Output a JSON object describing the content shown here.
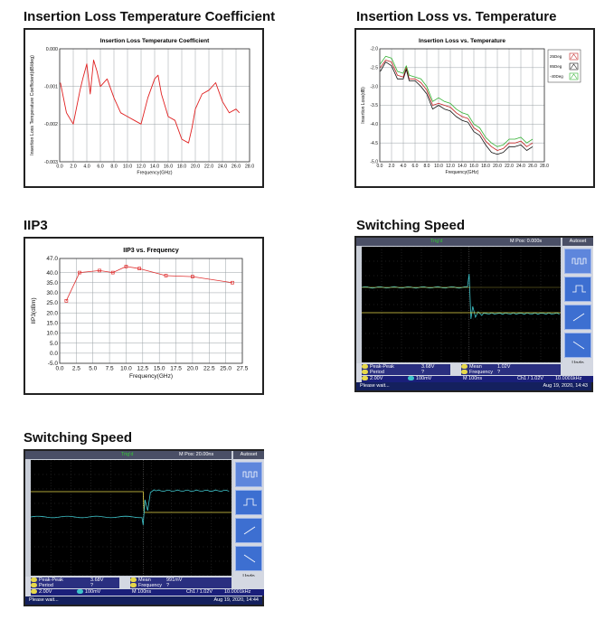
{
  "sections": {
    "il_coef": "Insertion Loss Temperature Coefficient",
    "il_temp": "Insertion Loss vs. Temperature",
    "iip3": "IIP3",
    "sw1": "Switching Speed",
    "sw2": "Switching Speed"
  },
  "chart_data": [
    {
      "type": "line",
      "title": "Insertion Loss Temperature Coefficient",
      "xlabel": "Frequency(GHz)",
      "ylabel": "Insertion Loss Temperature Coefficient(dB/deg)",
      "xlim": [
        0,
        28
      ],
      "ylim": [
        -0.003,
        0.0
      ],
      "x_ticks": [
        "0.0",
        "2.0",
        "4.0",
        "6.0",
        "8.0",
        "10.0",
        "12.0",
        "14.0",
        "16.0",
        "18.0",
        "20.0",
        "22.0",
        "24.0",
        "26.0",
        "28.0"
      ],
      "y_ticks": [
        "0.000",
        "-0.001",
        "-0.002",
        "-0.003"
      ],
      "grid": true,
      "color": "#e02020",
      "x": [
        0.1,
        1,
        2,
        3,
        3.4,
        4,
        4.5,
        5,
        5.5,
        6,
        7,
        8,
        9,
        10,
        11,
        12,
        13,
        14,
        14.5,
        15,
        16,
        17,
        18,
        19,
        19.5,
        20,
        21,
        22,
        23,
        24,
        25,
        26,
        26.5
      ],
      "y": [
        -0.0009,
        -0.0017,
        -0.002,
        -0.0011,
        -0.0008,
        -0.0004,
        -0.0012,
        -0.0003,
        -0.0006,
        -0.001,
        -0.0008,
        -0.0013,
        -0.0017,
        -0.0018,
        -0.0019,
        -0.002,
        -0.0013,
        -0.0008,
        -0.0007,
        -0.0012,
        -0.0018,
        -0.0019,
        -0.0024,
        -0.0025,
        -0.0021,
        -0.0016,
        -0.0012,
        -0.0011,
        -0.0009,
        -0.0014,
        -0.0017,
        -0.0016,
        -0.0017
      ]
    },
    {
      "type": "line",
      "title": "Insertion Loss vs. Temperature",
      "xlabel": "Frequency(GHz)",
      "ylabel": "Insertion Loss(dB)",
      "xlim": [
        0,
        28
      ],
      "ylim": [
        -5.0,
        -2.0
      ],
      "x_ticks": [
        "0.0",
        "2.0",
        "4.0",
        "6.0",
        "8.0",
        "10.0",
        "12.0",
        "14.0",
        "16.0",
        "18.0",
        "20.0",
        "22.0",
        "24.0",
        "26.0",
        "28.0"
      ],
      "y_ticks": [
        "-2.0",
        "-2.5",
        "-3.0",
        "-3.5",
        "-4.0",
        "-4.5",
        "-5.0"
      ],
      "grid": true,
      "legend": "top-right",
      "x": [
        0.1,
        1,
        2,
        3,
        4,
        4.5,
        5,
        6,
        7,
        8,
        9,
        10,
        11,
        12,
        13,
        14,
        15,
        16,
        17,
        18,
        19,
        20,
        21,
        22,
        23,
        24,
        25,
        26
      ],
      "series": [
        {
          "name": "25Deg",
          "color": "#c02020",
          "values": [
            -2.5,
            -2.3,
            -2.35,
            -2.7,
            -2.75,
            -2.5,
            -2.8,
            -2.8,
            -2.9,
            -3.1,
            -3.5,
            -3.45,
            -3.5,
            -3.55,
            -3.7,
            -3.8,
            -3.85,
            -4.1,
            -4.2,
            -4.45,
            -4.6,
            -4.7,
            -4.65,
            -4.5,
            -4.5,
            -4.45,
            -4.6,
            -4.5
          ]
        },
        {
          "name": "85Deg",
          "color": "#111111",
          "values": [
            -2.6,
            -2.35,
            -2.45,
            -2.8,
            -2.8,
            -2.55,
            -2.85,
            -2.85,
            -3.0,
            -3.2,
            -3.6,
            -3.5,
            -3.6,
            -3.65,
            -3.8,
            -3.9,
            -3.95,
            -4.2,
            -4.3,
            -4.55,
            -4.75,
            -4.8,
            -4.75,
            -4.6,
            -4.6,
            -4.55,
            -4.7,
            -4.6
          ]
        },
        {
          "name": "-40Deg",
          "color": "#30b030",
          "values": [
            -2.4,
            -2.2,
            -2.25,
            -2.6,
            -2.65,
            -2.45,
            -2.7,
            -2.75,
            -2.8,
            -3.0,
            -3.4,
            -3.3,
            -3.4,
            -3.45,
            -3.6,
            -3.7,
            -3.75,
            -4.0,
            -4.1,
            -4.35,
            -4.5,
            -4.6,
            -4.55,
            -4.4,
            -4.4,
            -4.35,
            -4.5,
            -4.4
          ]
        }
      ]
    },
    {
      "type": "line",
      "title": "IIP3 vs. Frequency",
      "xlabel": "Frequency(GHz)",
      "ylabel": "IIP3(dBm)",
      "xlim": [
        0,
        27.5
      ],
      "ylim": [
        -5.0,
        47.0
      ],
      "x_ticks": [
        "0.0",
        "2.5",
        "5.0",
        "7.5",
        "10.0",
        "12.5",
        "15.0",
        "17.5",
        "20.0",
        "22.5",
        "25.0",
        "27.5"
      ],
      "y_ticks": [
        "47.0",
        "40.0",
        "35.0",
        "30.0",
        "25.0",
        "20.0",
        "15.0",
        "10.0",
        "5.0",
        "0.0",
        "-5.0"
      ],
      "grid": true,
      "color": "#e03030",
      "x": [
        1,
        3,
        6,
        8,
        10,
        12,
        16,
        20,
        26
      ],
      "y": [
        26,
        40,
        41,
        40,
        43,
        42,
        38.5,
        38,
        35
      ]
    }
  ],
  "scope1": {
    "autoset": "Autoset",
    "trigd": "Trig'd",
    "mpos": "M Pos: 0.000s",
    "undo": "Undo Autoset",
    "m1_label": "Peak-Peak",
    "m1_val": "3.68V",
    "m2_label": "Period",
    "m2_val": "?",
    "m3_label": "Mean",
    "m3_val": "1.02V",
    "m4_label": "Frequency",
    "m4_val": "?",
    "ch1": "2.00V",
    "ch2": "100mV",
    "time": "M 100ns",
    "trig": "Ch1 / 1.02V",
    "freq": "10.0001kHz",
    "status": "Please wait...",
    "date": "Aug 19, 2020, 14:43"
  },
  "scope2": {
    "autoset": "Autoset",
    "trigd": "Trig'd",
    "mpos": "M Pos: 20.00ns",
    "undo": "Undo Autoset",
    "m1_label": "Peak-Peak",
    "m1_val": "3.68V",
    "m2_label": "Period",
    "m2_val": "?",
    "m3_label": "Mean",
    "m3_val": "991mV",
    "m4_label": "Frequency",
    "m4_val": "?",
    "ch1": "2.00V",
    "ch2": "100mV",
    "time": "M 100ns",
    "trig": "Ch1 / 1.02V",
    "freq": "10.0001kHz",
    "status": "Please wait...",
    "date": "Aug 19, 2020, 14:44"
  }
}
